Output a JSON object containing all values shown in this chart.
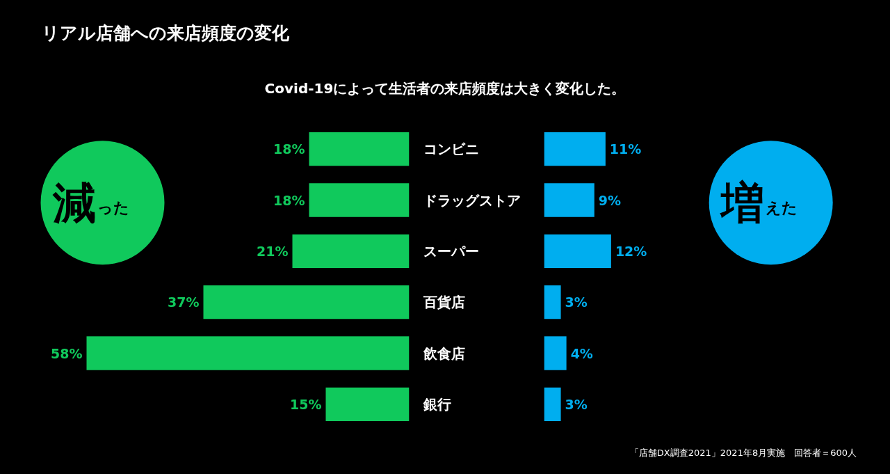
{
  "chart_data": [
    {
      "type": "bar",
      "orientation": "horizontal",
      "title": "リアル店舗への来店頻度の変化",
      "subtitle": "Covid-19によって生活者の来店頻度は大きく変化した。",
      "categories": [
        "コンビニ",
        "ドラッグストア",
        "スーパー",
        "百貨店",
        "飲食店",
        "銀行"
      ],
      "xlim": [
        73.5,
        0
      ],
      "tick_labels": "y",
      "legend": "left",
      "grid": false,
      "series": [
        {
          "name": "減った",
          "color": "#10c95c",
          "values": [
            18,
            18,
            21,
            37,
            58,
            15
          ],
          "value_labels": [
            "18%",
            "18%",
            "21%",
            "37%",
            "58%",
            "15%"
          ]
        }
      ]
    },
    {
      "type": "bar",
      "orientation": "horizontal",
      "categories": [
        null,
        null,
        null,
        null,
        null,
        null
      ],
      "xlim": [
        0,
        62
      ],
      "tick_labels": false,
      "legend": "right",
      "grid": false,
      "annotations": [
        "「店舗DX調査2021」2021年8月実施　回答者＝600人"
      ],
      "series": [
        {
          "name": "増えた",
          "color": "#00aeef",
          "values": [
            11,
            9,
            12,
            3,
            4,
            3
          ],
          "value_labels": [
            "11%",
            "9%",
            "12%",
            "3%",
            "4%",
            "3%"
          ]
        }
      ]
    }
  ]
}
